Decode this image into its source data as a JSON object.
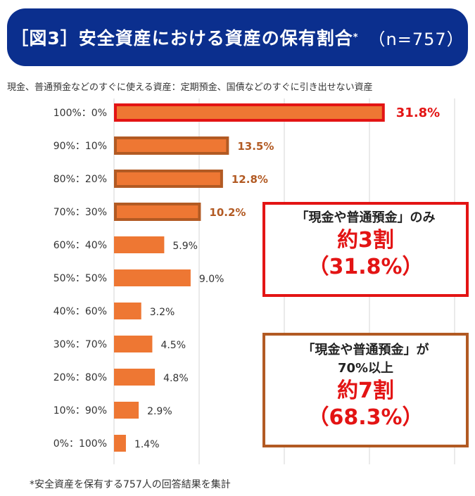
{
  "header": {
    "title": "［図3］安全資産における資産の保有割合",
    "title_mark": "*",
    "sample": "（n=757）"
  },
  "chart_data": {
    "type": "bar",
    "orientation": "horizontal",
    "subtitle": "現金、普通預金などのすぐに使える資産：定期預金、国債などのすぐに引き出せない資産",
    "categories": [
      "100%：0%",
      "90%：10%",
      "80%：20%",
      "70%：30%",
      "60%：40%",
      "50%：50%",
      "40%：60%",
      "30%：70%",
      "20%：80%",
      "10%：90%",
      "0%：100%"
    ],
    "values": [
      31.8,
      13.5,
      12.8,
      10.2,
      5.9,
      9.0,
      3.2,
      4.5,
      4.8,
      2.9,
      1.4
    ],
    "value_labels": [
      "31.8%",
      "13.5%",
      "12.8%",
      "10.2%",
      "5.9%",
      "9.0%",
      "3.2%",
      "4.5%",
      "4.8%",
      "2.9%",
      "1.4%"
    ],
    "xlim": [
      0,
      40
    ],
    "grid": true,
    "colors": {
      "bar": "#ee7733",
      "highlight_border": "#e31414",
      "group_border": "#b25a23"
    }
  },
  "callouts": [
    {
      "label": "「現金や普通預金」のみ",
      "big1": "約3割",
      "big2": "（31.8%）"
    },
    {
      "label1": "「現金や普通預金」が",
      "label2": "70%以上",
      "big1": "約7割",
      "big2": "（68.3%）"
    }
  ],
  "footnote": "*安全資産を保有する757人の回答結果を集計"
}
